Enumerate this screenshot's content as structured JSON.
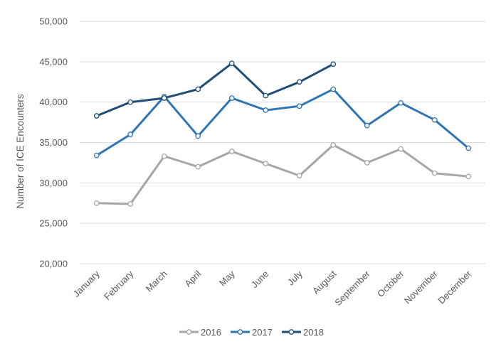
{
  "chart_data": {
    "type": "line",
    "title": "",
    "xlabel": "",
    "ylabel": "Number of ICE Encounters",
    "ylim": [
      20000,
      50000
    ],
    "yticks": [
      20000,
      25000,
      30000,
      35000,
      40000,
      45000,
      50000
    ],
    "ytick_labels": [
      "20,000",
      "25,000",
      "30,000",
      "35,000",
      "40,000",
      "45,000",
      "50,000"
    ],
    "categories": [
      "January",
      "February",
      "March",
      "April",
      "May",
      "June",
      "July",
      "August",
      "September",
      "October",
      "November",
      "December"
    ],
    "grid": true,
    "legend_position": "bottom",
    "series": [
      {
        "name": "2016",
        "color": "#a6a6a6",
        "values": [
          27500,
          27400,
          33300,
          32000,
          33900,
          32400,
          30900,
          34700,
          32500,
          34200,
          31200,
          30800
        ]
      },
      {
        "name": "2017",
        "color": "#2e75b6",
        "values": [
          33400,
          36000,
          40700,
          35800,
          40500,
          39000,
          39500,
          41600,
          37100,
          39900,
          37800,
          34300
        ]
      },
      {
        "name": "2018",
        "color": "#1f4e79",
        "values": [
          38300,
          40000,
          40500,
          41600,
          44800,
          40800,
          42500,
          44700,
          null,
          null,
          null,
          null
        ]
      }
    ]
  }
}
